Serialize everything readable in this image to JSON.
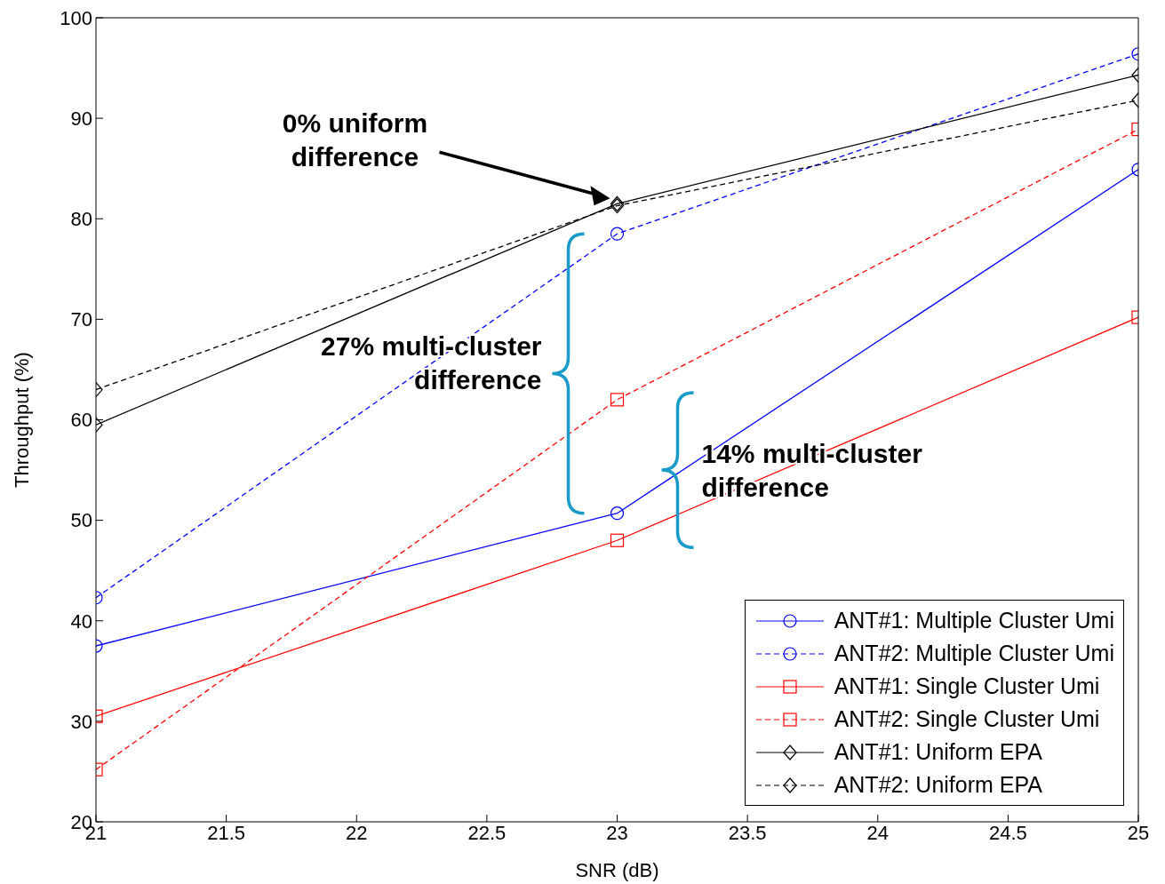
{
  "chart_data": {
    "type": "line",
    "xlabel": "SNR (dB)",
    "ylabel": "Throughput (%)",
    "x": [
      21,
      23,
      25
    ],
    "series": [
      {
        "name": "ANT#1: Multiple Cluster Umi",
        "color": "#0000ff",
        "marker": "circle",
        "line_style": "solid",
        "values": [
          37.5,
          50.7,
          84.9
        ]
      },
      {
        "name": "ANT#2: Multiple Cluster Umi",
        "color": "#0000ff",
        "marker": "circle",
        "line_style": "dashed",
        "values": [
          42.3,
          78.5,
          96.4
        ]
      },
      {
        "name": "ANT#1: Single Cluster Umi",
        "color": "#ff0000",
        "marker": "square",
        "line_style": "solid",
        "values": [
          30.5,
          48.0,
          70.2
        ]
      },
      {
        "name": "ANT#2: Single Cluster Umi",
        "color": "#ff0000",
        "marker": "square",
        "line_style": "dashed",
        "values": [
          25.2,
          62.0,
          88.9
        ]
      },
      {
        "name": "ANT#1: Uniform EPA",
        "color": "#000000",
        "marker": "diamond",
        "line_style": "solid",
        "values": [
          59.5,
          81.5,
          94.3
        ]
      },
      {
        "name": "ANT#2: Uniform EPA",
        "color": "#000000",
        "marker": "diamond",
        "line_style": "dashed",
        "values": [
          63.0,
          81.3,
          91.8
        ]
      }
    ],
    "xlim": [
      21,
      25
    ],
    "xticks": [
      21,
      21.5,
      22,
      22.5,
      23,
      23.5,
      24,
      24.5,
      25
    ],
    "ylim": [
      20,
      100
    ],
    "yticks": [
      20,
      30,
      40,
      50,
      60,
      70,
      80,
      90,
      100
    ],
    "grid": false,
    "legend": "bottom right",
    "annotations": [
      "0% uniform difference",
      "27% multi-cluster difference",
      "14% multi-cluster difference"
    ]
  }
}
